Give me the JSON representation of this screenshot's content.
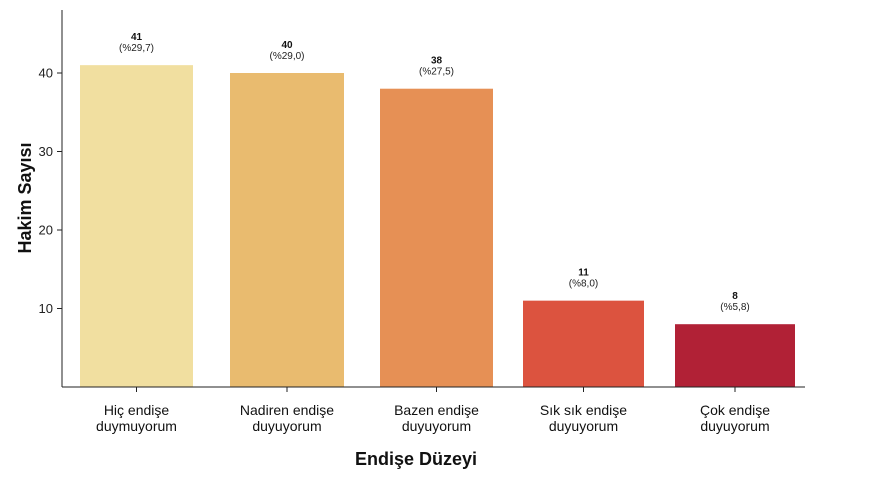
{
  "chart_data": {
    "type": "bar",
    "categories": [
      [
        "Hiç endişe",
        "duymuyorum"
      ],
      [
        "Nadiren endişe",
        "duyuyorum"
      ],
      [
        "Bazen endişe",
        "duyuyorum"
      ],
      [
        "Sık sık endişe",
        "duyuyorum"
      ],
      [
        "Çok endişe",
        "duyuyorum"
      ]
    ],
    "values": [
      41,
      40,
      38,
      11,
      8
    ],
    "percent_labels": [
      "(%29,7)",
      "(%29,0)",
      "(%27,5)",
      "(%8,0)",
      "(%5,8)"
    ],
    "colors": [
      "#f1dfa0",
      "#e9bb6f",
      "#e69055",
      "#dc533f",
      "#b12136"
    ],
    "xlabel": "Endişe Düzeyi",
    "ylabel": "Hakim Sayısı",
    "ylim": [
      0,
      47
    ],
    "yticks": [
      10,
      20,
      30,
      40
    ],
    "grid": false,
    "legend": "none"
  }
}
